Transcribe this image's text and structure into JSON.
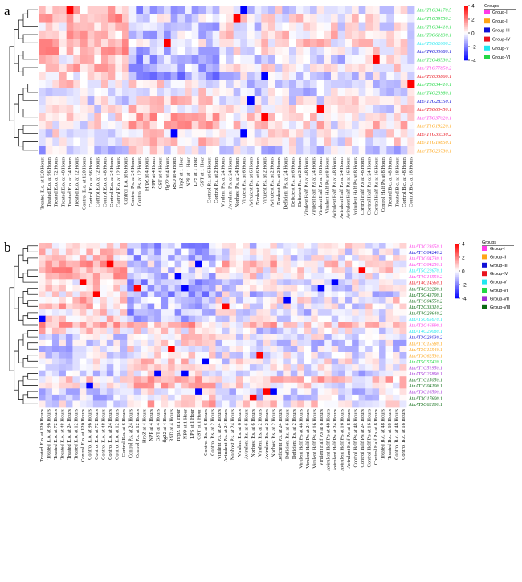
{
  "figure": {
    "panels": [
      {
        "letter": "a",
        "legend": {
          "scale_ticks": [
            "4",
            "2",
            "0",
            "-2",
            "-4"
          ],
          "groups_title": "Groups",
          "groups": [
            {
              "name": "Group-I",
              "color": "#ff3be8"
            },
            {
              "name": "Group-II",
              "color": "#ffa516"
            },
            {
              "name": "Group-III",
              "color": "#1010d6"
            },
            {
              "name": "Group-IV",
              "color": "#e8141e"
            },
            {
              "name": "Group-V",
              "color": "#22e8f0"
            },
            {
              "name": "Group-VI",
              "color": "#22d845"
            }
          ]
        }
      },
      {
        "letter": "b",
        "legend": {
          "scale_ticks": [
            "4",
            "2",
            "0",
            "-2",
            "-4"
          ],
          "groups_title": "Groups",
          "groups": [
            {
              "name": "Group-I",
              "color": "#ff3be8"
            },
            {
              "name": "Group-II",
              "color": "#ffa516"
            },
            {
              "name": "Group-III",
              "color": "#1010d6"
            },
            {
              "name": "Group-IV",
              "color": "#e8141e"
            },
            {
              "name": "Group-V",
              "color": "#22e8f0"
            },
            {
              "name": "Group-VI",
              "color": "#22d845"
            },
            {
              "name": "Group-VII",
              "color": "#a12ed6"
            },
            {
              "name": "Group-VIII",
              "color": "#0a6b12"
            }
          ]
        }
      }
    ]
  },
  "chart_data": [
    {
      "type": "heatmap",
      "panel": "a",
      "color_scale": {
        "min": -4,
        "max": 4,
        "low": "#0000ff",
        "mid": "#ffffff",
        "high": "#ff0000"
      },
      "rows": [
        {
          "label": "AthAT1G34170.5",
          "group": "Group-VI"
        },
        {
          "label": "AthAT1G59750.3",
          "group": "Group-VI"
        },
        {
          "label": "AthAT1G34410.1",
          "group": "Group-VI"
        },
        {
          "label": "AthAT3G61830.1",
          "group": "Group-VI"
        },
        {
          "label": "AthAT5G62000.3",
          "group": "Group-V"
        },
        {
          "label": "AthAT4G30080.1",
          "group": "Group-III"
        },
        {
          "label": "AthAT2G46530.3",
          "group": "Group-VI"
        },
        {
          "label": "AthAT1G77850.2",
          "group": "Group-I"
        },
        {
          "label": "AthAT2G33860.1",
          "group": "Group-IV"
        },
        {
          "label": "AthAT5G34410.1",
          "group": "Group-VI"
        },
        {
          "label": "AthAT4G23980.1",
          "group": "Group-VI"
        },
        {
          "label": "AthAT2G28350.1",
          "group": "Group-III"
        },
        {
          "label": "AthAT5G60450.1",
          "group": "Group-IV"
        },
        {
          "label": "AthAT5G37020.1",
          "group": "Group-I"
        },
        {
          "label": "AthAT1G19220.1",
          "group": "Group-II"
        },
        {
          "label": "AthAT1G30330.2",
          "group": "Group-IV"
        },
        {
          "label": "AthAT1G19850.1",
          "group": "Group-II"
        },
        {
          "label": "AthAT5G20730.1",
          "group": "Group-II"
        }
      ],
      "columns": [
        "Treated E.o. at 120 Hours",
        "Treated E.o. at 96 Hours",
        "Treated E.o. at 72 Hours",
        "Treated E.o. at 48 Hours",
        "Treated E.o. at 24 Hours",
        "Treated E.o. at 12 Hours",
        "Control E.o. at 120 Hours",
        "Control E.o. at 96 Hours",
        "Control E.o. at 72 Hours",
        "Control E.o. at 48 Hours",
        "Control E.o. at 24 Hours",
        "Control E.o. at 12 Hours",
        "Control E.o. at 6 Hours",
        "Control P.s. at 24 Hours",
        "Control P.s. at 12 Hours",
        "HrpZ at 4 Hours",
        "NPP at 4 Hours",
        "GST at 4 Hours",
        "flg22 at 4 Hours",
        "RSD at 4 Hours",
        "HrpZ at 1 Hour",
        "NPP at 1 Hour",
        "LPS at 1 Hour",
        "GST at 1 Hour",
        "Control P.s. at 6 Hours",
        "Control P.s. at 2 Hours",
        "Virulent P.s. at 24 Hours",
        "Avirulent P.s. at 24 Hours",
        "Nonhost P.s. at 24 Hours",
        "Virulent P.s. at 6 Hours",
        "Avirulent P.s. at 6 Hours",
        "Nonhost P.s. at 6 Hours",
        "Virulent P.s. at 2 Hours",
        "Avirulent P.s. at 2 Hours",
        "Nonhost P.s. at 2 Hours",
        "Deficient P.s. at 24 Hours",
        "Deficient P.s. at 6 Hours",
        "Deficient P.s. at 2 Hours",
        "Virulent Half P.s at 48 Hours",
        "Virulent Half P.s at 24 Hours",
        "Virulent Half P.s at 16 Hours",
        "Virulent Half P.s at 8 Hours",
        "Avirulent Half P.s at 48 Hours",
        "Avirulent Half P.s at 24 Hours",
        "Avirulent Half P.s at 16 Hours",
        "Avirulent Half P.s at 8 Hours",
        "Control Half P.s at 48 Hours",
        "Control Half P.s at 24 Hours",
        "Control Half P.s at 16 Hours",
        "Control Half P.s at 8 Hours",
        "Treated B.c. at 48 Hours",
        "Treated B.c. at 18 Hours",
        "Control B.c. at 48 Hours",
        "Control B.c. at 18 Hours"
      ]
    },
    {
      "type": "heatmap",
      "panel": "b",
      "color_scale": {
        "min": -4,
        "max": 4,
        "low": "#0000ff",
        "mid": "#ffffff",
        "high": "#ff0000"
      },
      "rows": [
        {
          "label": "AthAT3G23050.1",
          "group": "Group-I"
        },
        {
          "label": "AthAT1G04240.2",
          "group": "Group-III"
        },
        {
          "label": "AthAT3G04730.1",
          "group": "Group-I"
        },
        {
          "label": "AthAT1G04250.1",
          "group": "Group-I"
        },
        {
          "label": "AthAT5G22670.1",
          "group": "Group-V"
        },
        {
          "label": "AthAT4G14550.2",
          "group": "Group-I"
        },
        {
          "label": "AthAT4G14560.1",
          "group": "Group-IV"
        },
        {
          "label": "AthAT4G32280.1",
          "group": "Group-VIII"
        },
        {
          "label": "AthAT5G43700.1",
          "group": "Group-VIII"
        },
        {
          "label": "AthAT1G04550.2",
          "group": "Group-VIII"
        },
        {
          "label": "AthAT2G33310.2",
          "group": "Group-VIII"
        },
        {
          "label": "AthAT4G28640.2",
          "group": "Group-VIII"
        },
        {
          "label": "AthAT5G65670.1",
          "group": "Group-V"
        },
        {
          "label": "AthAT2G46990.1",
          "group": "Group-I"
        },
        {
          "label": "AthAT4G29080.1",
          "group": "Group-V"
        },
        {
          "label": "AthAT3G23030.2",
          "group": "Group-III"
        },
        {
          "label": "AthAT1G15580.1",
          "group": "Group-II"
        },
        {
          "label": "AthAT3G15540.1",
          "group": "Group-II"
        },
        {
          "label": "AthAT3G62530.1",
          "group": "Group-II"
        },
        {
          "label": "AthAT5G57420.1",
          "group": "Group-VI"
        },
        {
          "label": "AthAT1G51950.1",
          "group": "Group-VII"
        },
        {
          "label": "AthAT5G25890.1",
          "group": "Group-VII"
        },
        {
          "label": "AthAT1G15050.1",
          "group": "Group-VIII"
        },
        {
          "label": "AthAT1G04100.1",
          "group": "Group-VIII"
        },
        {
          "label": "AthAT3G16500.1",
          "group": "Group-VII"
        },
        {
          "label": "AthAT3G17600.1",
          "group": "Group-VIII"
        },
        {
          "label": "AthAT3G62100.1",
          "group": "Group-VIII"
        }
      ],
      "columns": [
        "Treated E.o. at 120 Hours",
        "Treated E.o. at 96 Hours",
        "Treated E.o. at 72 Hours",
        "Treated E.o. at 48 Hours",
        "Treated E.o. at 24 Hours",
        "Treated E.o. at 12 Hours",
        "Control E.o. at 120 Hours",
        "Control E.o. at 96 Hours",
        "Control E.o. at 72 Hours",
        "Control E.o. at 48 Hours",
        "Control E.o. at 24 Hours",
        "Control E.o. at 12 Hours",
        "Control E.o. at 6 Hours",
        "Control P.s. at 24 Hours",
        "Control P.s. at 12 Hours",
        "HrpZ at 4 Hours",
        "NPP at 4 Hours",
        "GST at 4 Hours",
        "flg22 at 4 Hours",
        "RSD at 4 Hours",
        "HrpZ at 1 Hour",
        "NPP at 1 Hour",
        "LPS at 1 Hour",
        "GST at 1 Hour",
        "Control P.s. at 6 Hours",
        "Control P.s. at 2 Hours",
        "Virulent P.s. at 24 Hours",
        "Avirulent P.s. at 24 Hours",
        "Nonhost P.s. at 24 Hours",
        "Virulent P.s. at 6 Hours",
        "Avirulent P.s. at 6 Hours",
        "Nonhost P.s. at 6 Hours",
        "Virulent P.s. at 2 Hours",
        "Avirulent P.s. at 2 Hours",
        "Nonhost P.s. at 2 Hours",
        "Deficient P.s. at 24 Hours",
        "Deficient P.s. at 6 Hours",
        "Deficient P.s. at 2 Hours",
        "Virulent Half P.s at 48 Hours",
        "Virulent Half P.s at 24 Hours",
        "Virulent Half P.s at 16 Hours",
        "Virulent Half P.s at 8 Hours",
        "Avirulent Half P.s at 48 Hours",
        "Avirulent Half P.s at 24 Hours",
        "Avirulent Half P.s at 16 Hours",
        "Avirulent Half P.s at 8 Hours",
        "Control Half P.s at 48 Hours",
        "Control Half P.s at 24 Hours",
        "Control Half P.s at 16 Hours",
        "Control Half P.s at 8 Hours",
        "Treated B.c. at 48 Hours",
        "Treated B.c. at 18 Hours",
        "Control B.c. at 48 Hours",
        "Control B.c. at 18 Hours"
      ]
    }
  ]
}
